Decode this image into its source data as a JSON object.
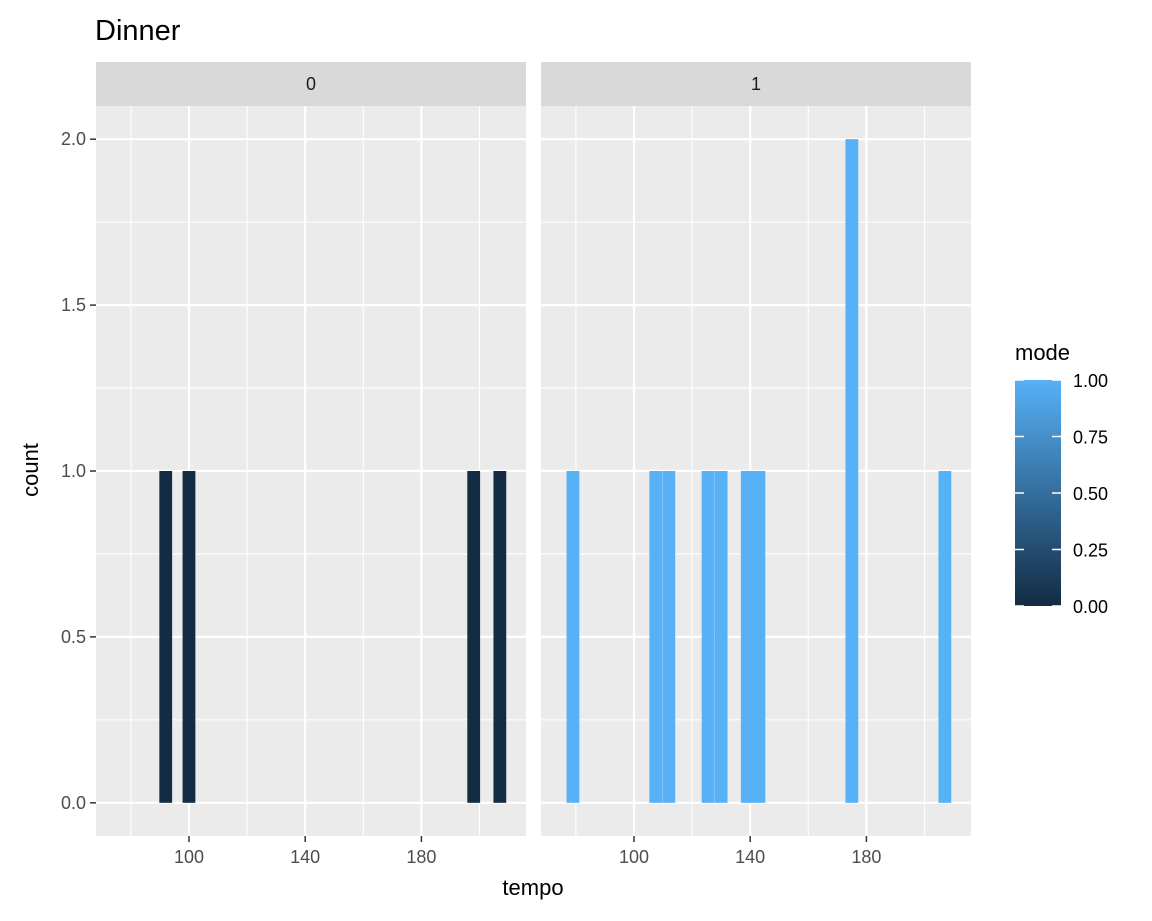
{
  "chart_data": {
    "type": "bar",
    "title": "Dinner",
    "xlabel": "tempo",
    "ylabel": "count",
    "xlim": [
      68,
      216
    ],
    "ylim": [
      -0.1,
      2.1
    ],
    "x_ticks": [
      100,
      140,
      180
    ],
    "x_tick_labels": [
      "100",
      "140",
      "180"
    ],
    "y_ticks": [
      0,
      0.5,
      1,
      1.5,
      2
    ],
    "y_tick_labels": [
      "0.0",
      "0.5",
      "1.0",
      "1.5",
      "2.0"
    ],
    "grid": true,
    "facet_variable": "mode",
    "bin_width": 4.4,
    "facets": [
      {
        "strip_label": "0",
        "mode_value": 0,
        "bars": [
          {
            "x": 92,
            "count": 1
          },
          {
            "x": 100,
            "count": 1
          },
          {
            "x": 198,
            "count": 1
          },
          {
            "x": 207,
            "count": 1
          }
        ]
      },
      {
        "strip_label": "1",
        "mode_value": 1,
        "bars": [
          {
            "x": 79,
            "count": 1
          },
          {
            "x": 107.5,
            "count": 1
          },
          {
            "x": 112,
            "count": 1
          },
          {
            "x": 125.5,
            "count": 1
          },
          {
            "x": 130,
            "count": 1
          },
          {
            "x": 139,
            "count": 1
          },
          {
            "x": 143,
            "count": 1
          },
          {
            "x": 175,
            "count": 2
          },
          {
            "x": 207,
            "count": 1
          }
        ]
      }
    ],
    "legend": {
      "title": "mode",
      "position": "right",
      "type": "colorbar",
      "labels": [
        "1.00",
        "0.75",
        "0.50",
        "0.25",
        "0.00"
      ],
      "values": [
        1,
        0.75,
        0.5,
        0.25,
        0
      ],
      "color_low": "#132B43",
      "color_high": "#56B1F7"
    },
    "colors": {
      "panel_background": "#EBEBEB",
      "strip_background": "#D9D9D9",
      "grid_major": "#FFFFFF",
      "bar_mode_0": "#132B43",
      "bar_mode_1": "#56B1F7"
    }
  }
}
